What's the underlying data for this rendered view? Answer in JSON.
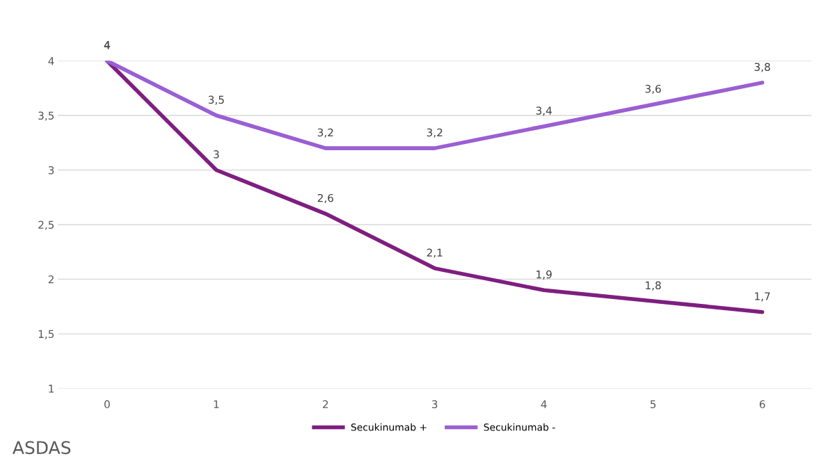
{
  "chart_data": {
    "type": "line",
    "categories": [
      "0",
      "1",
      "2",
      "3",
      "4",
      "5",
      "6"
    ],
    "series": [
      {
        "name": "Secukinumab +",
        "color": "#7e1e80",
        "values": [
          4,
          3,
          2.6,
          2.1,
          1.9,
          1.8,
          1.7
        ],
        "value_labels": [
          "4",
          "3",
          "2,6",
          "2,1",
          "1,9",
          "1,8",
          "1,7"
        ]
      },
      {
        "name": "Secukinumab -",
        "color": "#9a5fd4",
        "values": [
          4,
          3.5,
          3.2,
          3.2,
          3.4,
          3.6,
          3.8
        ],
        "value_labels": [
          "4",
          "3,5",
          "3,2",
          "3,2",
          "3,4",
          "3,6",
          "3,8"
        ]
      }
    ],
    "ylim": [
      1,
      4
    ],
    "yticks": [
      1,
      {
        "value": 1.5,
        "label": "1,5"
      },
      2,
      {
        "value": 2.5,
        "label": "2,5"
      },
      3,
      {
        "value": 3.5,
        "label": "3,5"
      },
      4
    ],
    "grid": "y",
    "legend": "bottom",
    "marker": "none",
    "line_style": "solid",
    "annotations": [
      "ASDAS"
    ]
  }
}
